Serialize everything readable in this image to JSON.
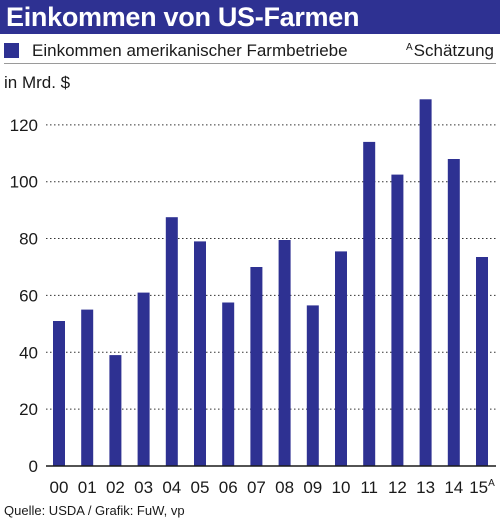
{
  "header": {
    "title": "Einkommen von US-Farmen"
  },
  "legend": {
    "series_label": "Einkommen amerikanischer Farmbetriebe",
    "estimate_marker": "A",
    "estimate_label": "Schätzung"
  },
  "unit_label": "in Mrd. $",
  "source": "Quelle: USDA / Grafik: FuW, vp",
  "colors": {
    "bar": "#2e3192",
    "header_bg": "#2e3192",
    "grid": "#333333"
  },
  "chart_data": {
    "type": "bar",
    "title": "Einkommen von US-Farmen",
    "ylabel": "in Mrd. $",
    "xlabel": "",
    "categories": [
      "00",
      "01",
      "02",
      "03",
      "04",
      "05",
      "06",
      "07",
      "08",
      "09",
      "10",
      "11",
      "12",
      "13",
      "14",
      "15"
    ],
    "category_labels": [
      "00",
      "01",
      "02",
      "03",
      "04",
      "05",
      "06",
      "07",
      "08",
      "09",
      "10",
      "11",
      "12",
      "13",
      "14",
      "15A"
    ],
    "series": [
      {
        "name": "Einkommen amerikanischer Farmbetriebe",
        "values": [
          51,
          55,
          39,
          61,
          87.5,
          79,
          57.5,
          70,
          79.5,
          56.5,
          75.5,
          114,
          102.5,
          129,
          108,
          73.5
        ]
      }
    ],
    "ylim": [
      0,
      130
    ],
    "yticks": [
      0,
      20,
      40,
      60,
      80,
      100,
      120
    ],
    "grid": true,
    "grid_style": "dotted horizontal",
    "legend_position": "top"
  }
}
